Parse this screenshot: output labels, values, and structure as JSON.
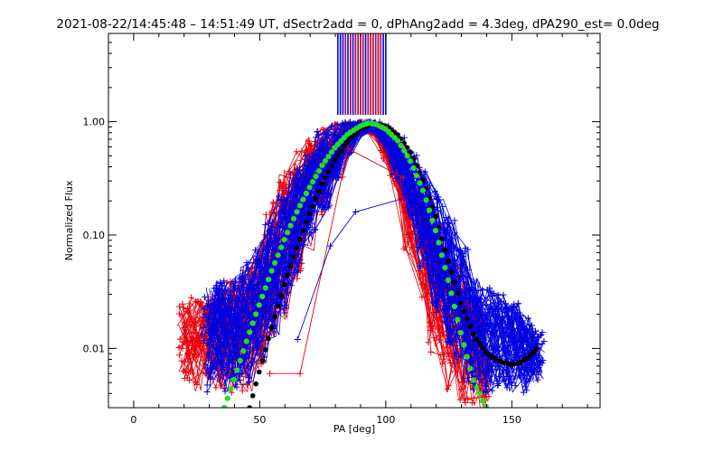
{
  "chart_data": {
    "type": "line",
    "title": "2021-08-22/14:45:48 – 14:51:49 UT, dSectr2add = 0, dPhAng2add = 4.3deg, dPA290_est=  0.0deg",
    "xlabel": "PA [deg]",
    "ylabel": "Normalized Flux",
    "xlim": [
      -10,
      185
    ],
    "ylim": [
      0.003,
      6.0
    ],
    "yscale": "log",
    "grid": false,
    "xticks": [
      0,
      50,
      100,
      150
    ],
    "xtick_labels": [
      "0",
      "50",
      "100",
      "150"
    ],
    "yticks": [
      0.01,
      0.1,
      1.0
    ],
    "ytick_labels": [
      "0.01",
      "0.10",
      "1.00"
    ],
    "colors": {
      "red_series": "#e8000b",
      "blue_series": "#0000e0",
      "green_fit": "#22dd22",
      "black_fit": "#000000"
    },
    "green_fit": {
      "x": [
        36,
        40,
        45,
        50,
        55,
        60,
        65,
        70,
        75,
        80,
        85,
        90,
        93,
        96,
        100,
        105,
        110,
        115,
        120,
        125,
        130,
        135,
        140
      ],
      "y": [
        0.003,
        0.0055,
        0.012,
        0.025,
        0.05,
        0.094,
        0.165,
        0.27,
        0.42,
        0.6,
        0.78,
        0.92,
        0.97,
        0.95,
        0.86,
        0.67,
        0.44,
        0.24,
        0.105,
        0.038,
        0.013,
        0.005,
        0.003
      ]
    },
    "black_fit": {
      "x": [
        46,
        50,
        55,
        60,
        65,
        70,
        75,
        80,
        85,
        90,
        95,
        100,
        105,
        110,
        115,
        120,
        125,
        130,
        135,
        140,
        145,
        150,
        153,
        156,
        158,
        160
      ],
      "y": [
        0.003,
        0.0065,
        0.016,
        0.038,
        0.08,
        0.16,
        0.29,
        0.47,
        0.68,
        0.87,
        0.96,
        0.92,
        0.76,
        0.53,
        0.3,
        0.14,
        0.056,
        0.024,
        0.013,
        0.009,
        0.0077,
        0.0072,
        0.0074,
        0.0082,
        0.009,
        0.01
      ]
    },
    "envelope": {
      "red": {
        "x": [
          20,
          25,
          30,
          35,
          40,
          45,
          50,
          55,
          60,
          65,
          70,
          75,
          80,
          85,
          90,
          95,
          100,
          105,
          110,
          115,
          120,
          125,
          130,
          135,
          140
        ],
        "upper": [
          0.025,
          0.03,
          0.03,
          0.033,
          0.04,
          0.05,
          0.09,
          0.2,
          0.38,
          0.55,
          0.75,
          0.9,
          1.0,
          1.0,
          1.0,
          0.98,
          0.8,
          0.55,
          0.33,
          0.19,
          0.12,
          0.09,
          0.06,
          0.03,
          0.01
        ],
        "lower": [
          0.005,
          0.004,
          0.004,
          0.004,
          0.004,
          0.004,
          0.006,
          0.01,
          0.018,
          0.035,
          0.07,
          0.15,
          0.3,
          0.55,
          0.8,
          0.75,
          0.45,
          0.2,
          0.07,
          0.025,
          0.009,
          0.004,
          0.003,
          0.003,
          0.003
        ]
      },
      "blue": {
        "x": [
          30,
          35,
          40,
          45,
          50,
          55,
          60,
          65,
          70,
          75,
          80,
          85,
          90,
          95,
          100,
          105,
          110,
          115,
          120,
          125,
          130,
          135,
          140,
          145,
          150,
          155,
          160
        ],
        "upper": [
          0.035,
          0.04,
          0.045,
          0.06,
          0.08,
          0.13,
          0.22,
          0.38,
          0.55,
          0.85,
          0.95,
          1.0,
          1.0,
          1.0,
          0.95,
          0.75,
          0.55,
          0.38,
          0.25,
          0.15,
          0.08,
          0.045,
          0.035,
          0.03,
          0.025,
          0.02,
          0.015
        ],
        "lower": [
          0.004,
          0.004,
          0.004,
          0.005,
          0.007,
          0.012,
          0.02,
          0.04,
          0.08,
          0.15,
          0.3,
          0.5,
          0.75,
          0.8,
          0.6,
          0.3,
          0.12,
          0.05,
          0.02,
          0.009,
          0.005,
          0.004,
          0.004,
          0.004,
          0.004,
          0.004,
          0.005
        ]
      }
    },
    "outlier_red": {
      "x": [
        54,
        66,
        85,
        107
      ],
      "y": [
        0.006,
        0.006,
        0.58,
        0.32
      ]
    },
    "outlier_blue": {
      "x": [
        65,
        78,
        88,
        110,
        138
      ],
      "y": [
        0.012,
        0.08,
        0.16,
        0.22,
        0.02
      ]
    },
    "vertical_lines": {
      "red_x": [
        84,
        86,
        88,
        89,
        90,
        91,
        93,
        94,
        95,
        96,
        97,
        98
      ],
      "blue_x": [
        81,
        82,
        83,
        84,
        85,
        86,
        87,
        88,
        89,
        90,
        91,
        92,
        93,
        94,
        95,
        96,
        97,
        98,
        99,
        100
      ]
    }
  }
}
